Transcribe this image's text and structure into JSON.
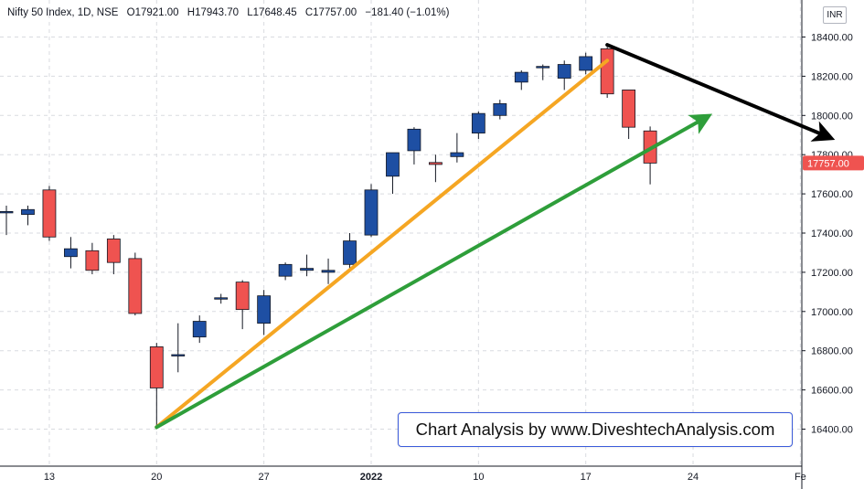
{
  "header": {
    "symbol": "Nifty 50 Index, 1D, NSE",
    "open": "O17921.00",
    "high": "H17943.70",
    "low": "L17648.45",
    "close": "C17757.00",
    "change": "−181.40 (−1.01%)"
  },
  "currency": "INR",
  "watermark": "Chart Analysis by www.DiveshtechAnalysis.com",
  "last_price_label": "17757.00",
  "colors": {
    "up": "#1e4fa3",
    "down": "#ef5350",
    "last_price": "#ef5350",
    "orange_line": "#f5a623",
    "green_line": "#2e9e3a",
    "black_line": "#000000"
  },
  "chart_data": {
    "type": "candlestick",
    "title": "Nifty 50 Index, 1D, NSE",
    "y_ticks": [
      16400,
      16600,
      16800,
      17000,
      17200,
      17400,
      17600,
      17800,
      18000,
      18200,
      18400
    ],
    "ylim": [
      16180,
      18490
    ],
    "x_ticks": [
      {
        "label": "13",
        "index": 2
      },
      {
        "label": "20",
        "index": 7
      },
      {
        "label": "27",
        "index": 12
      },
      {
        "label": "2022",
        "index": 17
      },
      {
        "label": "10",
        "index": 22
      },
      {
        "label": "17",
        "index": 27
      },
      {
        "label": "24",
        "index": 32
      },
      {
        "label": "Fe",
        "index": 37
      }
    ],
    "candles": [
      {
        "o": 17510,
        "h": 17540,
        "l": 17390,
        "c": 17510
      },
      {
        "o": 17495,
        "h": 17540,
        "l": 17440,
        "c": 17520
      },
      {
        "o": 17620,
        "h": 17640,
        "l": 17360,
        "c": 17380
      },
      {
        "o": 17280,
        "h": 17380,
        "l": 17220,
        "c": 17320
      },
      {
        "o": 17310,
        "h": 17350,
        "l": 17190,
        "c": 17210
      },
      {
        "o": 17370,
        "h": 17390,
        "l": 17190,
        "c": 17250
      },
      {
        "o": 17270,
        "h": 17300,
        "l": 16980,
        "c": 16990
      },
      {
        "o": 16820,
        "h": 16840,
        "l": 16410,
        "c": 16610
      },
      {
        "o": 16780,
        "h": 16940,
        "l": 16690,
        "c": 16780
      },
      {
        "o": 16870,
        "h": 16980,
        "l": 16840,
        "c": 16950
      },
      {
        "o": 17070,
        "h": 17090,
        "l": 17040,
        "c": 17070
      },
      {
        "o": 17150,
        "h": 17160,
        "l": 16910,
        "c": 17010
      },
      {
        "o": 16940,
        "h": 17110,
        "l": 16880,
        "c": 17080
      },
      {
        "o": 17180,
        "h": 17250,
        "l": 17160,
        "c": 17240
      },
      {
        "o": 17210,
        "h": 17290,
        "l": 17180,
        "c": 17220
      },
      {
        "o": 17200,
        "h": 17270,
        "l": 17140,
        "c": 17210
      },
      {
        "o": 17240,
        "h": 17400,
        "l": 17220,
        "c": 17360
      },
      {
        "o": 17390,
        "h": 17650,
        "l": 17380,
        "c": 17620
      },
      {
        "o": 17690,
        "h": 17790,
        "l": 17600,
        "c": 17810
      },
      {
        "o": 17820,
        "h": 17940,
        "l": 17750,
        "c": 17930
      },
      {
        "o": 17760,
        "h": 17800,
        "l": 17660,
        "c": 17750
      },
      {
        "o": 17790,
        "h": 17910,
        "l": 17760,
        "c": 17810
      },
      {
        "o": 17910,
        "h": 18020,
        "l": 17880,
        "c": 18010
      },
      {
        "o": 18000,
        "h": 18080,
        "l": 17980,
        "c": 18060
      },
      {
        "o": 18170,
        "h": 18230,
        "l": 18130,
        "c": 18220
      },
      {
        "o": 18250,
        "h": 18260,
        "l": 18180,
        "c": 18250
      },
      {
        "o": 18190,
        "h": 18280,
        "l": 18130,
        "c": 18260
      },
      {
        "o": 18230,
        "h": 18320,
        "l": 18210,
        "c": 18300
      },
      {
        "o": 18340,
        "h": 18350,
        "l": 18090,
        "c": 18110
      },
      {
        "o": 18130,
        "h": 18130,
        "l": 17880,
        "c": 17940
      },
      {
        "o": 17921,
        "h": 17943.7,
        "l": 17648.45,
        "c": 17757
      }
    ],
    "trend_lines": [
      {
        "name": "orange",
        "from": {
          "index": 7,
          "value": 16410
        },
        "to": {
          "index": 28,
          "value": 18280
        }
      },
      {
        "name": "green",
        "from": {
          "index": 7,
          "value": 16410
        },
        "to": {
          "index": 32.6,
          "value": 17990
        },
        "arrow": true
      },
      {
        "name": "black",
        "from": {
          "index": 28,
          "value": 18360
        },
        "to": {
          "index": 38.3,
          "value": 17890
        },
        "arrow": true
      }
    ],
    "last_price": 17757
  }
}
